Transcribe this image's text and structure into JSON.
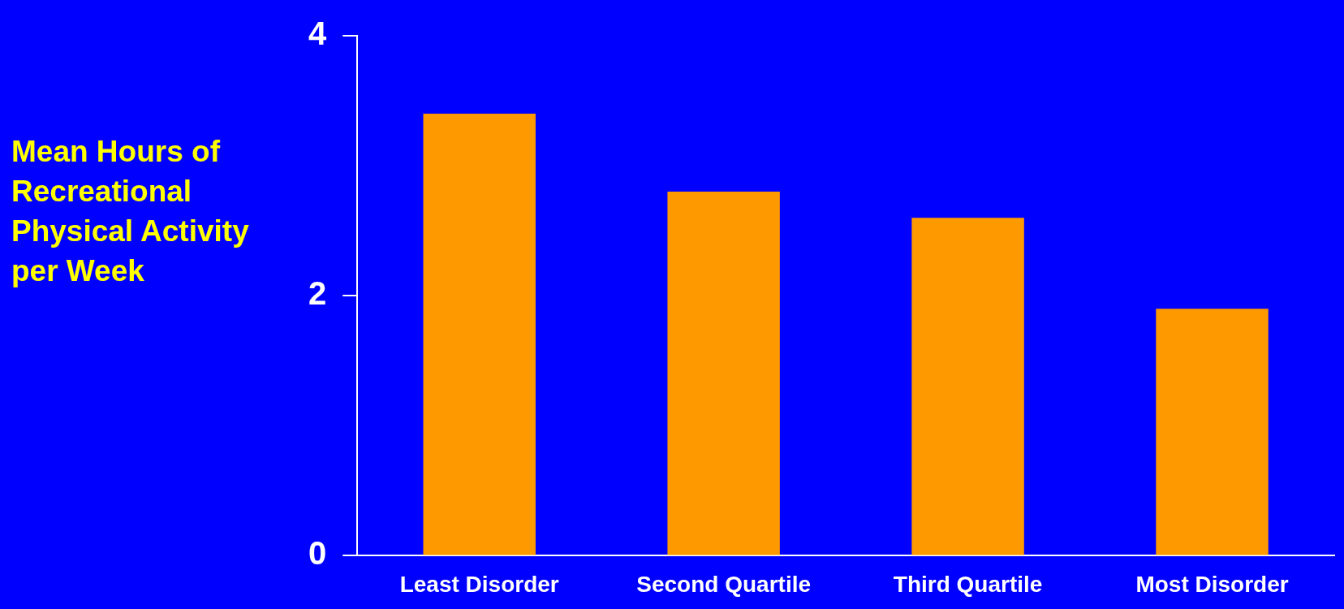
{
  "chart_data": {
    "type": "bar",
    "ylabel": "Mean Hours of Recreational Physical Activity per Week",
    "categories": [
      "Least Disorder",
      "Second Quartile",
      "Third Quartile",
      "Most Disorder"
    ],
    "values": [
      3.4,
      2.8,
      2.6,
      1.9
    ],
    "color": "#ff9900",
    "ylim": [
      0,
      4
    ],
    "yticks": [
      0,
      2,
      4
    ]
  }
}
